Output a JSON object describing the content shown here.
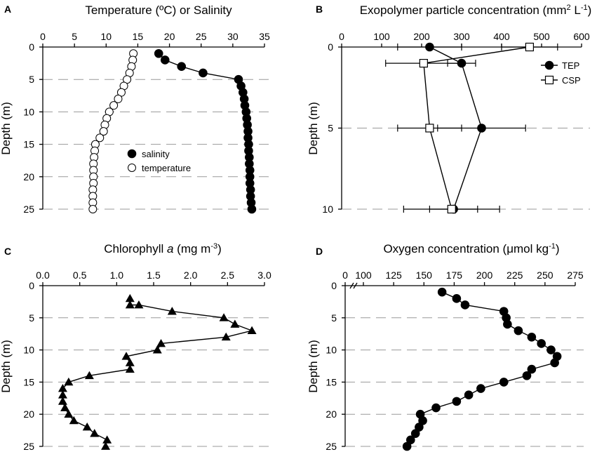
{
  "chart_data": [
    {
      "panel": "A",
      "type": "scatter",
      "title": "Temperature (ºC) or Salinity",
      "ylabel": "Depth (m)",
      "xlim": [
        0,
        35
      ],
      "ylim": [
        0,
        25
      ],
      "xticks": [
        "0",
        "5",
        "10",
        "15",
        "20",
        "25",
        "30",
        "35"
      ],
      "yticks": [
        "0",
        "5",
        "10",
        "15",
        "20",
        "25"
      ],
      "grid": true,
      "legend": "center",
      "series": [
        {
          "name": "salinity",
          "marker": "filled-circle",
          "connected": true,
          "points": [
            [
              18.3,
              1
            ],
            [
              19.3,
              2
            ],
            [
              21.9,
              3
            ],
            [
              25.3,
              4
            ],
            [
              30.9,
              5
            ],
            [
              31.3,
              6
            ],
            [
              31.6,
              7
            ],
            [
              31.8,
              8
            ],
            [
              31.9,
              9
            ],
            [
              32.1,
              10
            ],
            [
              32.2,
              11
            ],
            [
              32.3,
              12
            ],
            [
              32.4,
              13
            ],
            [
              32.4,
              14
            ],
            [
              32.5,
              15
            ],
            [
              32.5,
              16
            ],
            [
              32.6,
              17
            ],
            [
              32.6,
              18
            ],
            [
              32.7,
              19
            ],
            [
              32.7,
              20
            ],
            [
              32.7,
              21
            ],
            [
              32.8,
              22
            ],
            [
              32.8,
              23
            ],
            [
              32.9,
              24
            ],
            [
              33.0,
              25
            ]
          ]
        },
        {
          "name": "temperature",
          "marker": "open-circle",
          "connected": false,
          "points": [
            [
              14.3,
              1
            ],
            [
              14.2,
              2
            ],
            [
              14.0,
              3
            ],
            [
              13.7,
              4
            ],
            [
              13.3,
              5
            ],
            [
              12.8,
              6
            ],
            [
              12.4,
              7
            ],
            [
              11.9,
              8
            ],
            [
              11.2,
              9
            ],
            [
              10.5,
              10
            ],
            [
              10.1,
              11
            ],
            [
              9.8,
              12
            ],
            [
              9.6,
              13
            ],
            [
              9.0,
              14
            ],
            [
              8.3,
              15
            ],
            [
              8.2,
              16
            ],
            [
              8.1,
              17
            ],
            [
              8.0,
              18
            ],
            [
              8.0,
              19
            ],
            [
              8.0,
              20
            ],
            [
              8.0,
              21
            ],
            [
              7.9,
              22
            ],
            [
              7.9,
              23
            ],
            [
              7.9,
              24
            ],
            [
              7.9,
              25
            ]
          ]
        }
      ]
    },
    {
      "panel": "B",
      "type": "line",
      "title": "Exopolymer particle concentration (mm",
      "title_sup1": "2",
      "title_mid": " L",
      "title_sup2": "-1",
      "title_end": ")",
      "ylabel": "Depth (m)",
      "xlim": [
        0,
        600
      ],
      "ylim": [
        0,
        10
      ],
      "xticks": [
        "0",
        "100",
        "200",
        "300",
        "400",
        "500",
        "600"
      ],
      "yticks": [
        "0",
        "5",
        "10"
      ],
      "grid": true,
      "legend": "top-right",
      "series": [
        {
          "name": "TEP",
          "marker": "filled-circle",
          "points": [
            [
              220,
              0,
              80
            ],
            [
              300,
              1,
              35
            ],
            [
              350,
              5,
              110
            ],
            [
              280,
              10,
              60
            ]
          ]
        },
        {
          "name": "CSP",
          "marker": "open-square",
          "points": [
            [
              470,
              0,
              70
            ],
            [
              205,
              1,
              95
            ],
            [
              220,
              5,
              80
            ],
            [
              275,
              10,
              120
            ]
          ]
        }
      ]
    },
    {
      "panel": "C",
      "type": "line",
      "title": "Chlorophyll ",
      "title_italic": "a",
      "title_mid": " (mg m",
      "title_sup": "-3",
      "title_end": ")",
      "ylabel": "Depth (m)",
      "xlim": [
        0,
        3
      ],
      "ylim": [
        0,
        25
      ],
      "xticks": [
        "0.0",
        "0.5",
        "1.0",
        "1.5",
        "2.0",
        "2.5",
        "3.0"
      ],
      "yticks": [
        "0",
        "5",
        "10",
        "15",
        "20",
        "25"
      ],
      "grid": true,
      "series": [
        {
          "name": "chlorophyll a",
          "marker": "filled-triangle",
          "points": [
            [
              1.18,
              2
            ],
            [
              1.18,
              3
            ],
            [
              1.3,
              3
            ],
            [
              1.75,
              4
            ],
            [
              2.45,
              5
            ],
            [
              2.6,
              6
            ],
            [
              2.83,
              7
            ],
            [
              2.48,
              8
            ],
            [
              1.6,
              9
            ],
            [
              1.55,
              10
            ],
            [
              1.13,
              11
            ],
            [
              1.18,
              12
            ],
            [
              1.18,
              13
            ],
            [
              0.63,
              14
            ],
            [
              0.35,
              15
            ],
            [
              0.27,
              16
            ],
            [
              0.27,
              17
            ],
            [
              0.27,
              18
            ],
            [
              0.3,
              19
            ],
            [
              0.35,
              20
            ],
            [
              0.42,
              21
            ],
            [
              0.6,
              22
            ],
            [
              0.7,
              23
            ],
            [
              0.87,
              24
            ],
            [
              0.85,
              25
            ]
          ]
        }
      ]
    },
    {
      "panel": "D",
      "type": "line",
      "title": "Oxygen concentration (",
      "title_mu": "μ",
      "title_mid": "mol kg",
      "title_sup": "-1",
      "title_end": ")",
      "ylabel": "Depth (m)",
      "xlim": [
        100,
        275
      ],
      "ylim": [
        0,
        25
      ],
      "xticks": [
        "0",
        "100",
        "125",
        "150",
        "175",
        "200",
        "225",
        "250",
        "275"
      ],
      "yticks": [
        "0",
        "5",
        "10",
        "15",
        "20",
        "25"
      ],
      "axis_break": true,
      "grid": true,
      "series": [
        {
          "name": "oxygen",
          "marker": "filled-circle",
          "points": [
            [
              165,
              1
            ],
            [
              177,
              2
            ],
            [
              184,
              3
            ],
            [
              216,
              4
            ],
            [
              218,
              5
            ],
            [
              219,
              6
            ],
            [
              228,
              7
            ],
            [
              239,
              8
            ],
            [
              247,
              9
            ],
            [
              255,
              10
            ],
            [
              260,
              11
            ],
            [
              258,
              12
            ],
            [
              239,
              13
            ],
            [
              235,
              14
            ],
            [
              216,
              15
            ],
            [
              197,
              16
            ],
            [
              187,
              17
            ],
            [
              177,
              18
            ],
            [
              160,
              19
            ],
            [
              147,
              20
            ],
            [
              149,
              21
            ],
            [
              146,
              22
            ],
            [
              143,
              23
            ],
            [
              139,
              24
            ],
            [
              136,
              25
            ]
          ]
        }
      ]
    }
  ]
}
